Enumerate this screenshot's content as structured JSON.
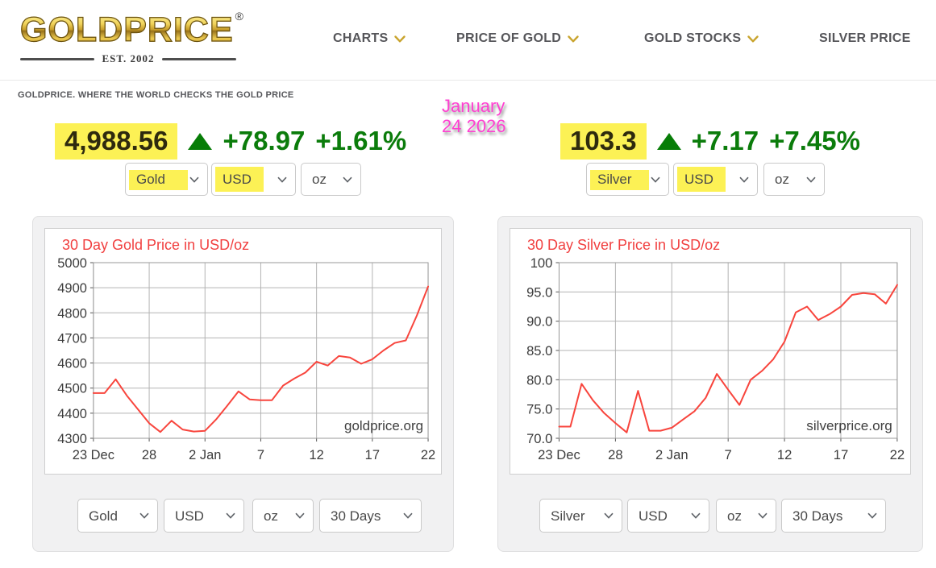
{
  "header": {
    "logo_text": "GOLDPRICE",
    "logo_reg": "®",
    "logo_est": "EST. 2002",
    "nav": [
      {
        "label": "CHARTS",
        "has_dropdown": true
      },
      {
        "label": "PRICE OF GOLD",
        "has_dropdown": true
      },
      {
        "label": "GOLD STOCKS",
        "has_dropdown": true
      },
      {
        "label": "SILVER PRICE",
        "has_dropdown": false
      }
    ]
  },
  "tagline": "GOLDPRICE. WHERE THE WORLD CHECKS THE GOLD PRICE",
  "annotation": {
    "line1": "January",
    "line2": "24 2026"
  },
  "gold_ticker": {
    "price": "4,988.56",
    "direction": "up",
    "change": "+78.97",
    "change_pct": "+1.61%"
  },
  "silver_ticker": {
    "price": "103.3",
    "direction": "up",
    "change": "+7.17",
    "change_pct": "+7.45%"
  },
  "gold_selects": {
    "metal": "Gold",
    "currency": "USD",
    "unit": "oz"
  },
  "silver_selects": {
    "metal": "Silver",
    "currency": "USD",
    "unit": "oz"
  },
  "gold_chart_selects": {
    "metal": "Gold",
    "currency": "USD",
    "unit": "oz",
    "period": "30 Days"
  },
  "silver_chart_selects": {
    "metal": "Silver",
    "currency": "USD",
    "unit": "oz",
    "period": "30 Days"
  },
  "colors": {
    "highlight_yellow": "#fcf155",
    "positive_green": "#0b7c0b",
    "chart_red": "#f8453d",
    "annotation_pink": "#ff3fd1",
    "nav_gold_chevron": "#c9a42e"
  },
  "chart_data": [
    {
      "type": "line",
      "title": "30 Day Gold Price in USD/oz",
      "watermark": "goldprice.org",
      "legend": "none",
      "grid": true,
      "line_color": "#f8453d",
      "ylim": [
        4300,
        5000
      ],
      "y_ticks": [
        5000,
        4900,
        4800,
        4700,
        4600,
        4500,
        4400,
        4300
      ],
      "y_tick_labels": [
        "5000",
        "4900",
        "4800",
        "4700",
        "4600",
        "4500",
        "4400",
        "4300"
      ],
      "x_tick_positions": [
        0,
        5,
        10,
        15,
        20,
        25,
        30
      ],
      "x_tick_labels": [
        "23 Dec",
        "28",
        "2 Jan",
        "7",
        "12",
        "17",
        "22"
      ],
      "dates": [
        "Dec 23",
        "Dec 24",
        "Dec 25",
        "Dec 26",
        "Dec 27",
        "Dec 28",
        "Dec 29",
        "Dec 30",
        "Dec 31",
        "Jan 1",
        "Jan 2",
        "Jan 3",
        "Jan 4",
        "Jan 5",
        "Jan 6",
        "Jan 7",
        "Jan 8",
        "Jan 9",
        "Jan 10",
        "Jan 11",
        "Jan 12",
        "Jan 13",
        "Jan 14",
        "Jan 15",
        "Jan 16",
        "Jan 17",
        "Jan 18",
        "Jan 19",
        "Jan 20",
        "Jan 21",
        "Jan 22"
      ],
      "values": [
        4480,
        4480,
        4535,
        4470,
        4415,
        4360,
        4325,
        4370,
        4335,
        4327,
        4330,
        4375,
        4430,
        4487,
        4455,
        4452,
        4452,
        4510,
        4538,
        4562,
        4605,
        4590,
        4628,
        4622,
        4597,
        4615,
        4650,
        4680,
        4690,
        4790,
        4905
      ]
    },
    {
      "type": "line",
      "title": "30 Day Silver Price in USD/oz",
      "watermark": "silverprice.org",
      "legend": "none",
      "grid": true,
      "line_color": "#f8453d",
      "ylim": [
        70,
        100
      ],
      "y_ticks": [
        100,
        95,
        90,
        85,
        80,
        75,
        70
      ],
      "y_tick_labels": [
        "100",
        "95.0",
        "90.0",
        "85.0",
        "80.0",
        "75.0",
        "70.0"
      ],
      "x_tick_positions": [
        0,
        5,
        10,
        15,
        20,
        25,
        30
      ],
      "x_tick_labels": [
        "23 Dec",
        "28",
        "2 Jan",
        "7",
        "12",
        "17",
        "22"
      ],
      "dates": [
        "Dec 23",
        "Dec 24",
        "Dec 25",
        "Dec 26",
        "Dec 27",
        "Dec 28",
        "Dec 29",
        "Dec 30",
        "Dec 31",
        "Jan 1",
        "Jan 2",
        "Jan 3",
        "Jan 4",
        "Jan 5",
        "Jan 6",
        "Jan 7",
        "Jan 8",
        "Jan 9",
        "Jan 10",
        "Jan 11",
        "Jan 12",
        "Jan 13",
        "Jan 14",
        "Jan 15",
        "Jan 16",
        "Jan 17",
        "Jan 18",
        "Jan 19",
        "Jan 20",
        "Jan 21",
        "Jan 22"
      ],
      "values": [
        72.0,
        72.0,
        79.3,
        76.5,
        74.3,
        72.6,
        71.0,
        78.1,
        71.3,
        71.3,
        71.8,
        73.2,
        74.6,
        76.9,
        81.0,
        78.3,
        75.7,
        80.0,
        81.5,
        83.5,
        86.5,
        91.5,
        92.5,
        90.2,
        91.2,
        92.5,
        94.5,
        94.8,
        94.6,
        93.0,
        96.2
      ]
    }
  ]
}
